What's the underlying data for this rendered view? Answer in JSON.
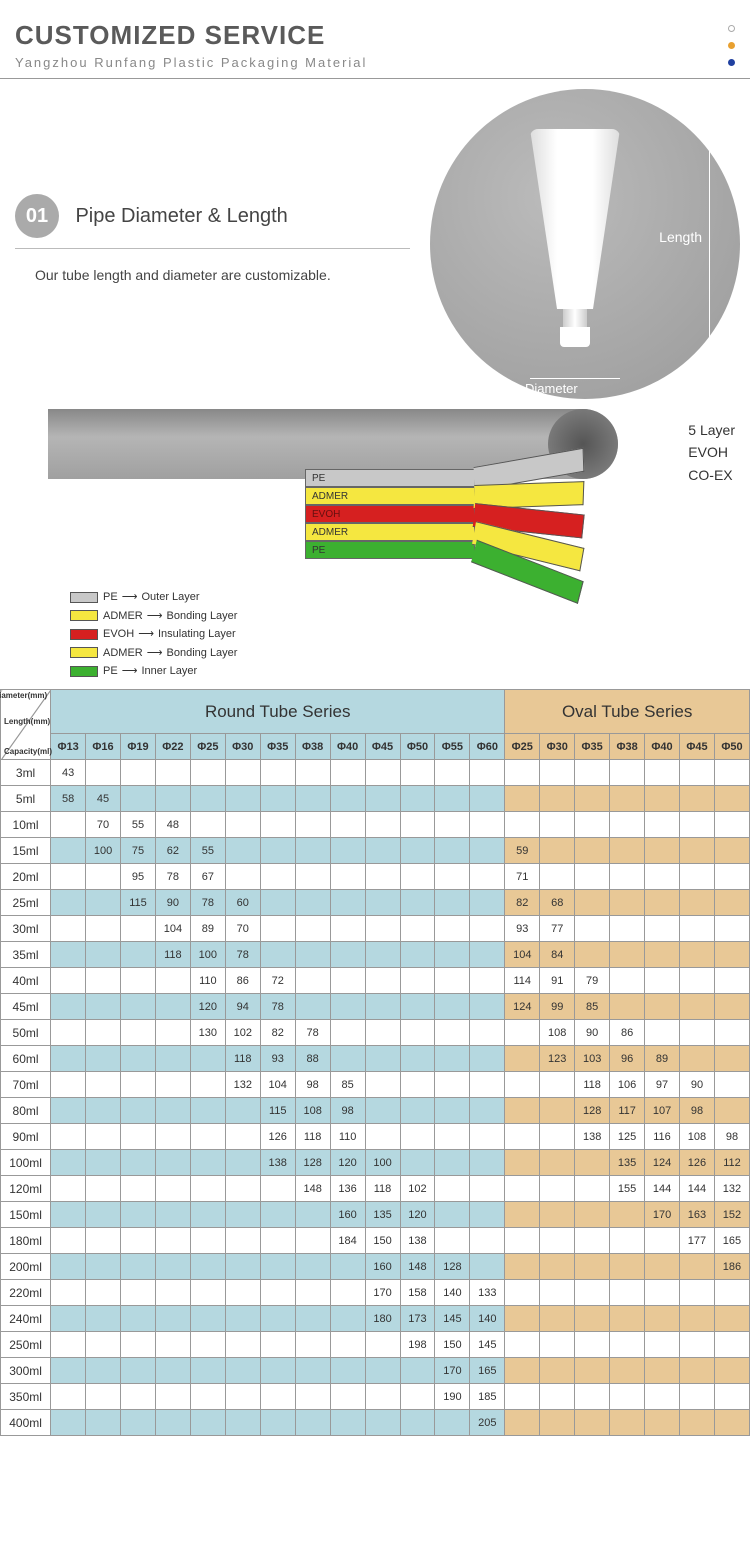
{
  "header": {
    "title": "CUSTOMIZED SERVICE",
    "subtitle": "Yangzhou Runfang Plastic Packaging Material"
  },
  "section1": {
    "badge": "01",
    "title": "Pipe Diameter & Length",
    "desc": "Our tube length and diameter are customizable.",
    "length_label": "Length",
    "diameter_label": "Diameter"
  },
  "diagram": {
    "side_labels": [
      "5 Layer",
      "EVOH",
      "CO-EX"
    ],
    "strips": [
      "PE",
      "ADMER",
      "EVOH",
      "ADMER",
      "PE"
    ],
    "legend": [
      {
        "swatch": "pe",
        "mat": "PE",
        "role": "Outer Layer"
      },
      {
        "swatch": "ad",
        "mat": "ADMER",
        "role": "Bonding Layer"
      },
      {
        "swatch": "ev",
        "mat": "EVOH",
        "role": "Insulating Layer"
      },
      {
        "swatch": "ad",
        "mat": "ADMER",
        "role": "Bonding Layer"
      },
      {
        "swatch": "gr",
        "mat": "PE",
        "role": "Inner Layer"
      }
    ]
  },
  "table": {
    "corner": {
      "top": "Diameter(mm)",
      "mid": "Length(mm)",
      "bot": "Capacity(ml)"
    },
    "round_title": "Round Tube Series",
    "oval_title": "Oval Tube Series",
    "round_cols": [
      "Φ13",
      "Φ16",
      "Φ19",
      "Φ22",
      "Φ25",
      "Φ30",
      "Φ35",
      "Φ38",
      "Φ40",
      "Φ45",
      "Φ50",
      "Φ55",
      "Φ60"
    ],
    "oval_cols": [
      "Φ25",
      "Φ30",
      "Φ35",
      "Φ38",
      "Φ40",
      "Φ45",
      "Φ50"
    ],
    "rows": [
      {
        "cap": "3ml",
        "r": [
          "43",
          "",
          "",
          "",
          "",
          "",
          "",
          "",
          "",
          "",
          "",
          "",
          ""
        ],
        "o": [
          "",
          "",
          "",
          "",
          "",
          "",
          ""
        ]
      },
      {
        "cap": "5ml",
        "r": [
          "58",
          "45",
          "",
          "",
          "",
          "",
          "",
          "",
          "",
          "",
          "",
          "",
          ""
        ],
        "o": [
          "",
          "",
          "",
          "",
          "",
          "",
          ""
        ]
      },
      {
        "cap": "10ml",
        "r": [
          "",
          "70",
          "55",
          "48",
          "",
          "",
          "",
          "",
          "",
          "",
          "",
          "",
          ""
        ],
        "o": [
          "",
          "",
          "",
          "",
          "",
          "",
          ""
        ]
      },
      {
        "cap": "15ml",
        "r": [
          "",
          "100",
          "75",
          "62",
          "55",
          "",
          "",
          "",
          "",
          "",
          "",
          "",
          ""
        ],
        "o": [
          "59",
          "",
          "",
          "",
          "",
          "",
          ""
        ]
      },
      {
        "cap": "20ml",
        "r": [
          "",
          "",
          "95",
          "78",
          "67",
          "",
          "",
          "",
          "",
          "",
          "",
          "",
          ""
        ],
        "o": [
          "71",
          "",
          "",
          "",
          "",
          "",
          ""
        ]
      },
      {
        "cap": "25ml",
        "r": [
          "",
          "",
          "115",
          "90",
          "78",
          "60",
          "",
          "",
          "",
          "",
          "",
          "",
          ""
        ],
        "o": [
          "82",
          "68",
          "",
          "",
          "",
          "",
          ""
        ]
      },
      {
        "cap": "30ml",
        "r": [
          "",
          "",
          "",
          "104",
          "89",
          "70",
          "",
          "",
          "",
          "",
          "",
          "",
          ""
        ],
        "o": [
          "93",
          "77",
          "",
          "",
          "",
          "",
          ""
        ]
      },
      {
        "cap": "35ml",
        "r": [
          "",
          "",
          "",
          "118",
          "100",
          "78",
          "",
          "",
          "",
          "",
          "",
          "",
          ""
        ],
        "o": [
          "104",
          "84",
          "",
          "",
          "",
          "",
          ""
        ]
      },
      {
        "cap": "40ml",
        "r": [
          "",
          "",
          "",
          "",
          "110",
          "86",
          "72",
          "",
          "",
          "",
          "",
          "",
          ""
        ],
        "o": [
          "114",
          "91",
          "79",
          "",
          "",
          "",
          ""
        ]
      },
      {
        "cap": "45ml",
        "r": [
          "",
          "",
          "",
          "",
          "120",
          "94",
          "78",
          "",
          "",
          "",
          "",
          "",
          ""
        ],
        "o": [
          "124",
          "99",
          "85",
          "",
          "",
          "",
          ""
        ]
      },
      {
        "cap": "50ml",
        "r": [
          "",
          "",
          "",
          "",
          "130",
          "102",
          "82",
          "78",
          "",
          "",
          "",
          "",
          ""
        ],
        "o": [
          "",
          "108",
          "90",
          "86",
          "",
          "",
          ""
        ]
      },
      {
        "cap": "60ml",
        "r": [
          "",
          "",
          "",
          "",
          "",
          "118",
          "93",
          "88",
          "",
          "",
          "",
          "",
          ""
        ],
        "o": [
          "",
          "123",
          "103",
          "96",
          "89",
          "",
          ""
        ]
      },
      {
        "cap": "70ml",
        "r": [
          "",
          "",
          "",
          "",
          "",
          "132",
          "104",
          "98",
          "85",
          "",
          "",
          "",
          ""
        ],
        "o": [
          "",
          "",
          "118",
          "106",
          "97",
          "90",
          ""
        ]
      },
      {
        "cap": "80ml",
        "r": [
          "",
          "",
          "",
          "",
          "",
          "",
          "115",
          "108",
          "98",
          "",
          "",
          "",
          ""
        ],
        "o": [
          "",
          "",
          "128",
          "117",
          "107",
          "98",
          ""
        ]
      },
      {
        "cap": "90ml",
        "r": [
          "",
          "",
          "",
          "",
          "",
          "",
          "126",
          "118",
          "110",
          "",
          "",
          "",
          ""
        ],
        "o": [
          "",
          "",
          "138",
          "125",
          "116",
          "108",
          "98"
        ]
      },
      {
        "cap": "100ml",
        "r": [
          "",
          "",
          "",
          "",
          "",
          "",
          "138",
          "128",
          "120",
          "100",
          "",
          "",
          ""
        ],
        "o": [
          "",
          "",
          "",
          "135",
          "124",
          "126",
          "112"
        ]
      },
      {
        "cap": "120ml",
        "r": [
          "",
          "",
          "",
          "",
          "",
          "",
          "",
          "148",
          "136",
          "118",
          "102",
          "",
          ""
        ],
        "o": [
          "",
          "",
          "",
          "155",
          "144",
          "144",
          "132"
        ]
      },
      {
        "cap": "150ml",
        "r": [
          "",
          "",
          "",
          "",
          "",
          "",
          "",
          "",
          "160",
          "135",
          "120",
          "",
          ""
        ],
        "o": [
          "",
          "",
          "",
          "",
          "170",
          "163",
          "152"
        ]
      },
      {
        "cap": "180ml",
        "r": [
          "",
          "",
          "",
          "",
          "",
          "",
          "",
          "",
          "184",
          "150",
          "138",
          "",
          ""
        ],
        "o": [
          "",
          "",
          "",
          "",
          "",
          "177",
          "165"
        ]
      },
      {
        "cap": "200ml",
        "r": [
          "",
          "",
          "",
          "",
          "",
          "",
          "",
          "",
          "",
          "160",
          "148",
          "128",
          ""
        ],
        "o": [
          "",
          "",
          "",
          "",
          "",
          "",
          "186"
        ]
      },
      {
        "cap": "220ml",
        "r": [
          "",
          "",
          "",
          "",
          "",
          "",
          "",
          "",
          "",
          "170",
          "158",
          "140",
          "133"
        ],
        "o": [
          "",
          "",
          "",
          "",
          "",
          "",
          ""
        ]
      },
      {
        "cap": "240ml",
        "r": [
          "",
          "",
          "",
          "",
          "",
          "",
          "",
          "",
          "",
          "180",
          "173",
          "145",
          "140"
        ],
        "o": [
          "",
          "",
          "",
          "",
          "",
          "",
          ""
        ]
      },
      {
        "cap": "250ml",
        "r": [
          "",
          "",
          "",
          "",
          "",
          "",
          "",
          "",
          "",
          "",
          "198",
          "150",
          "145"
        ],
        "o": [
          "",
          "",
          "",
          "",
          "",
          "",
          ""
        ]
      },
      {
        "cap": "300ml",
        "r": [
          "",
          "",
          "",
          "",
          "",
          "",
          "",
          "",
          "",
          "",
          "",
          "170",
          "165"
        ],
        "o": [
          "",
          "",
          "",
          "",
          "",
          "",
          ""
        ]
      },
      {
        "cap": "350ml",
        "r": [
          "",
          "",
          "",
          "",
          "",
          "",
          "",
          "",
          "",
          "",
          "",
          "190",
          "185"
        ],
        "o": [
          "",
          "",
          "",
          "",
          "",
          "",
          ""
        ]
      },
      {
        "cap": "400ml",
        "r": [
          "",
          "",
          "",
          "",
          "",
          "",
          "",
          "",
          "",
          "",
          "",
          "",
          "205"
        ],
        "o": [
          "",
          "",
          "",
          "",
          "",
          "",
          ""
        ]
      }
    ]
  }
}
